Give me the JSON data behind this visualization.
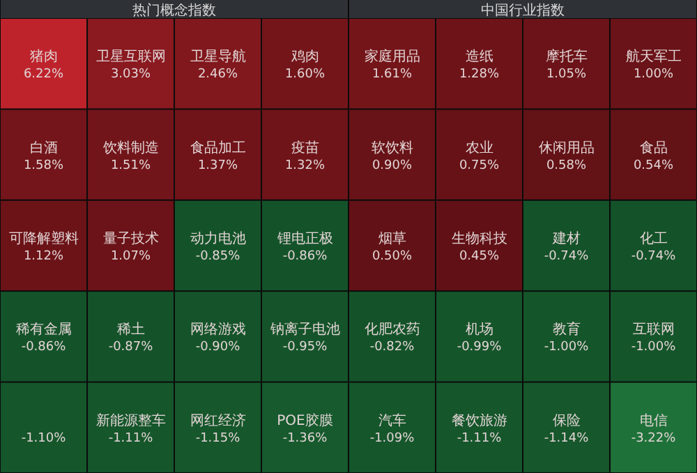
{
  "chart_data": [
    {
      "type": "other",
      "title": "热门概念指数",
      "categories": [
        "猪肉",
        "卫星互联网",
        "卫星导航",
        "鸡肉",
        "白酒",
        "饮料制造",
        "食品加工",
        "疫苗",
        "可降解塑料",
        "量子技术",
        "动力电池",
        "锂电正极",
        "稀有金属",
        "稀土",
        "网络游戏",
        "钠离子电池",
        null,
        "新能源整车",
        "网红经济",
        "POE胶膜"
      ],
      "values": [
        6.22,
        3.03,
        2.46,
        1.6,
        1.58,
        1.51,
        1.37,
        1.32,
        1.12,
        1.07,
        -0.85,
        -0.86,
        -0.86,
        -0.87,
        -0.9,
        -0.95,
        -1.1,
        -1.11,
        -1.15,
        -1.36
      ],
      "value_labels": [
        "6.22%",
        "3.03%",
        "2.46%",
        "1.60%",
        "1.58%",
        "1.51%",
        "1.37%",
        "1.32%",
        "1.12%",
        "1.07%",
        "-0.85%",
        "-0.86%",
        "-0.86%",
        "-0.87%",
        "-0.90%",
        "-0.95%",
        "-1.10%",
        "-1.11%",
        "-1.15%",
        "-1.36%"
      ]
    },
    {
      "type": "other",
      "title": "中国行业指数",
      "categories": [
        "家庭用品",
        "造纸",
        "摩托车",
        "航天军工",
        "软饮料",
        "农业",
        "休闲用品",
        "食品",
        "烟草",
        "生物科技",
        "建材",
        "化工",
        "化肥农药",
        "机场",
        "教育",
        "互联网",
        "汽车",
        "餐饮旅游",
        "保险",
        "电信"
      ],
      "values": [
        1.61,
        1.28,
        1.05,
        1.0,
        0.9,
        0.75,
        0.58,
        0.54,
        0.5,
        0.45,
        -0.74,
        -0.74,
        -0.82,
        -0.99,
        -1.0,
        -1.0,
        -1.09,
        -1.11,
        -1.14,
        -3.22
      ],
      "value_labels": [
        "1.61%",
        "1.28%",
        "1.05%",
        "1.00%",
        "0.90%",
        "0.75%",
        "0.58%",
        "0.54%",
        "0.50%",
        "0.45%",
        "-0.74%",
        "-0.74%",
        "-0.82%",
        "-0.99%",
        "-1.00%",
        "-1.00%",
        "-1.09%",
        "-1.11%",
        "-1.14%",
        "-3.22%"
      ]
    }
  ]
}
